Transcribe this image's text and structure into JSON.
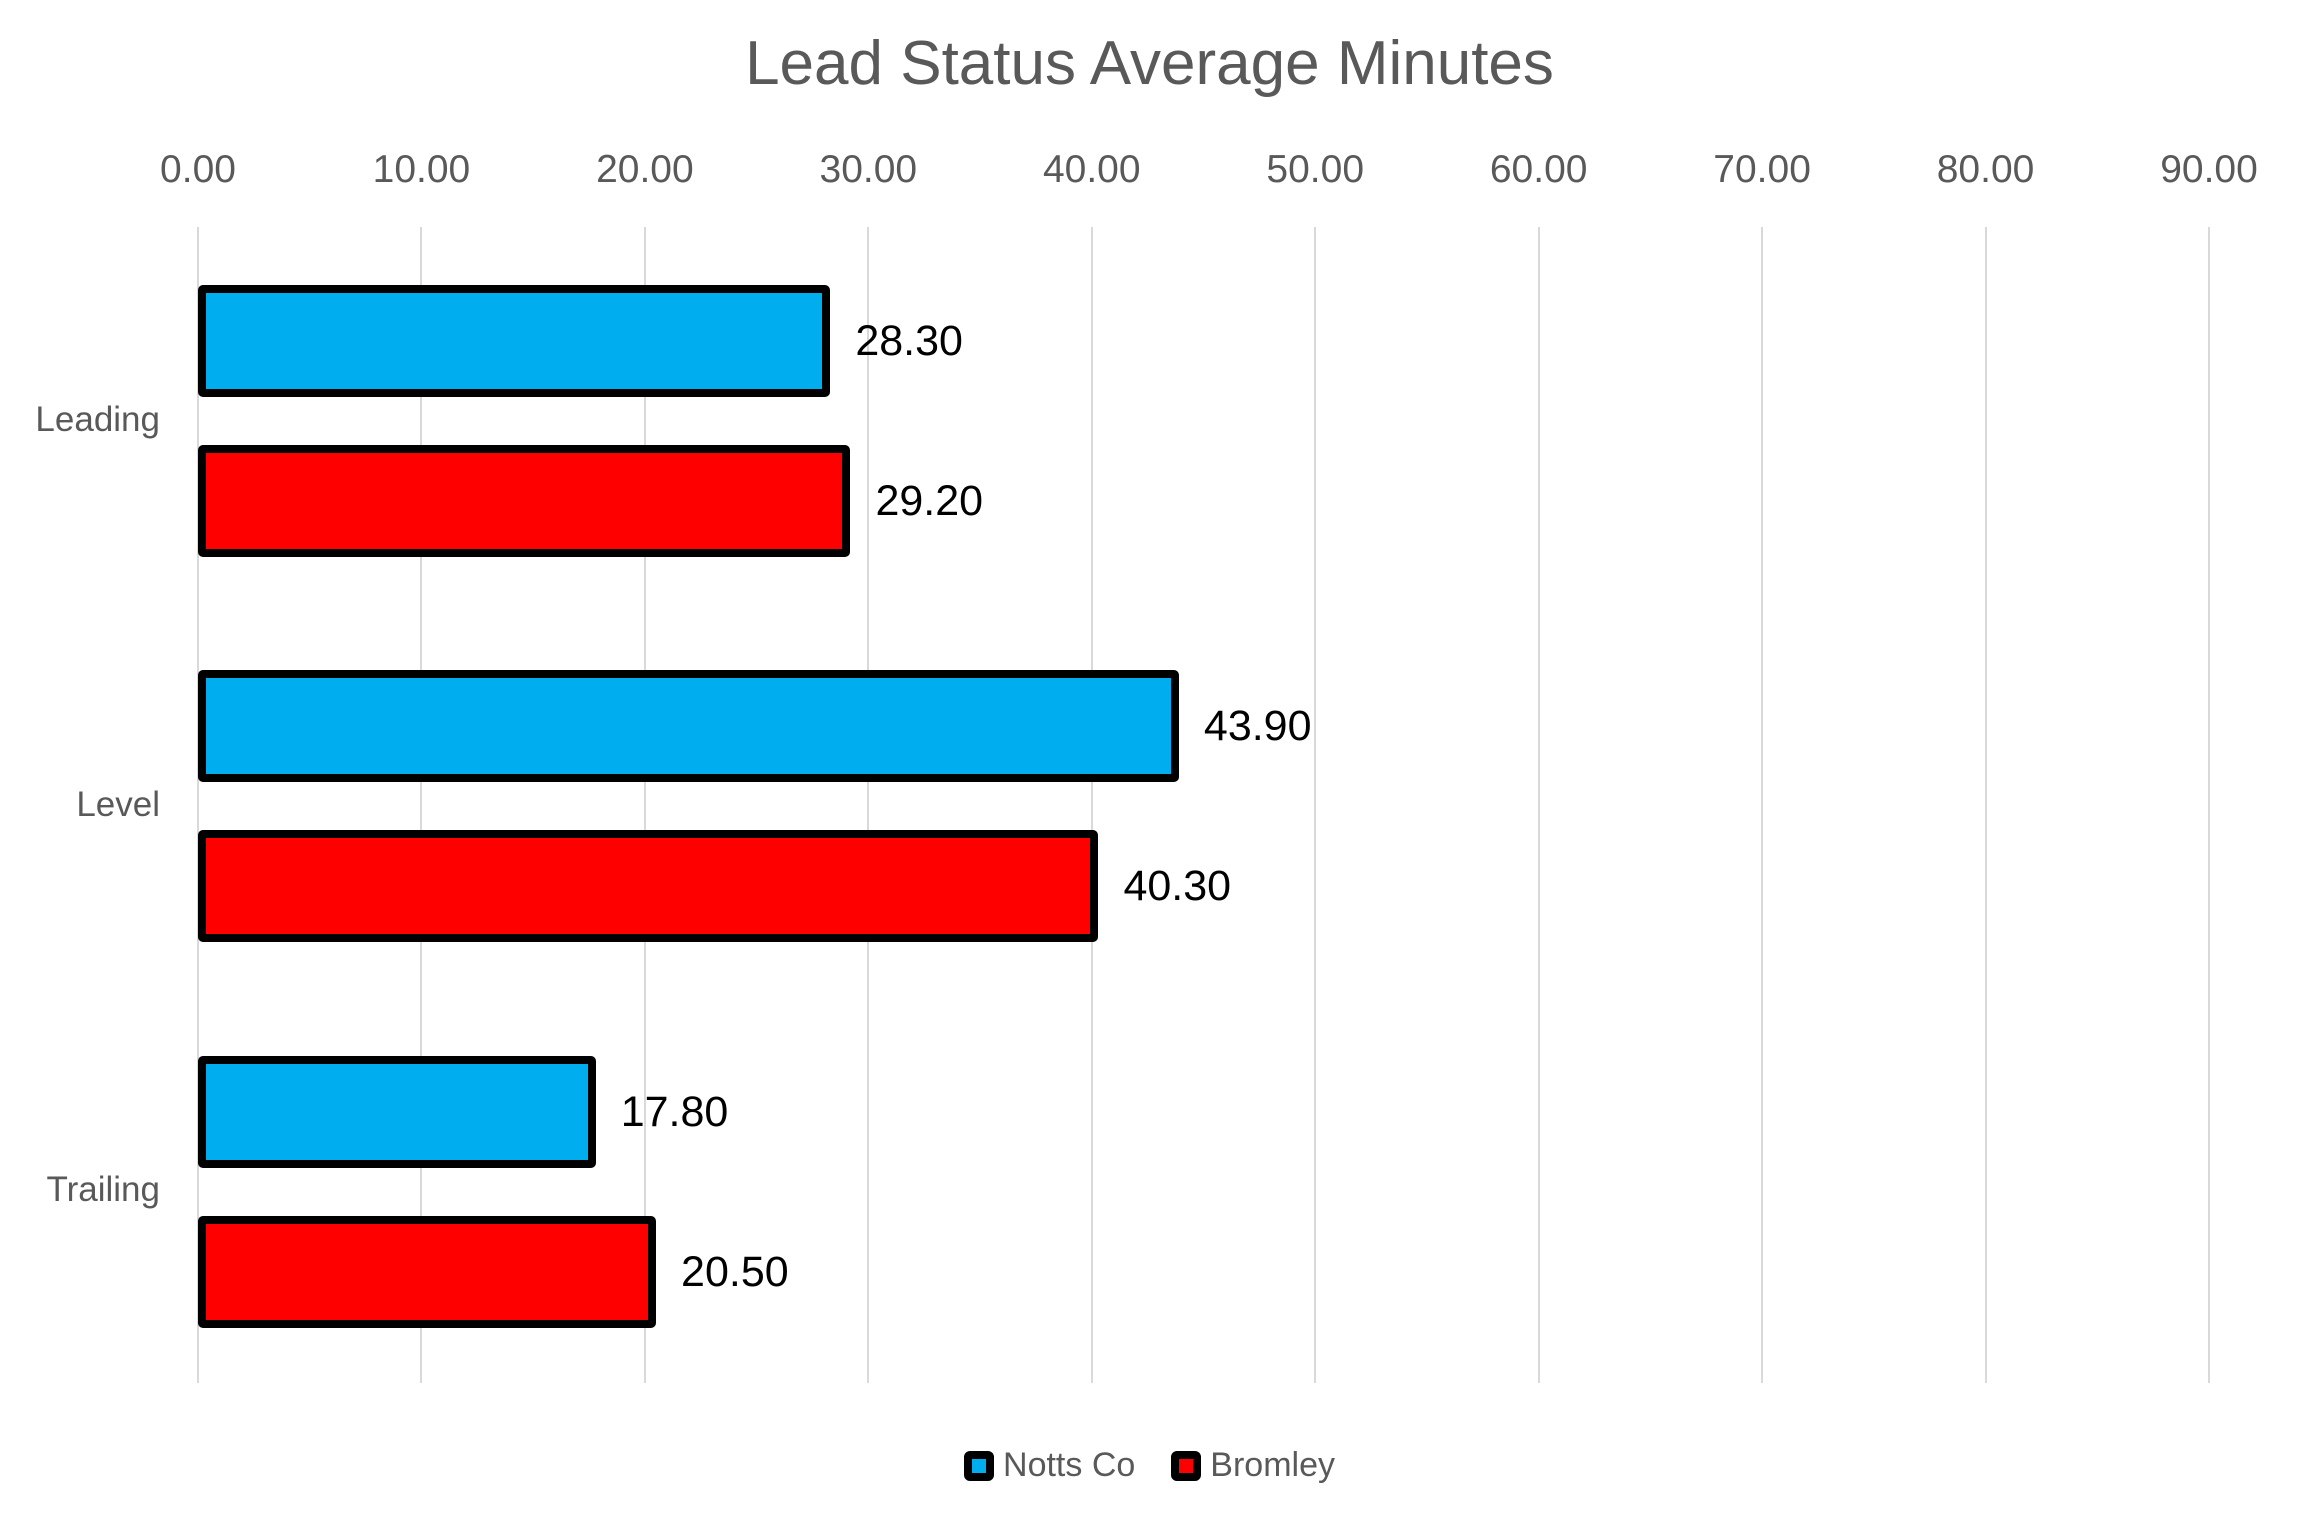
{
  "chart_data": {
    "type": "bar",
    "orientation": "horizontal",
    "title": "Lead Status Average Minutes",
    "categories": [
      "Leading",
      "Level",
      "Trailing"
    ],
    "series": [
      {
        "name": "Notts Co",
        "color": "#00AEEF",
        "values": [
          28.3,
          43.9,
          17.8
        ],
        "labels": [
          "28.30",
          "43.90",
          "17.80"
        ]
      },
      {
        "name": "Bromley",
        "color": "#FF0000",
        "values": [
          29.2,
          40.3,
          20.5
        ],
        "labels": [
          "29.20",
          "40.30",
          "20.50"
        ]
      }
    ],
    "x_axis": {
      "min": 0,
      "max": 90,
      "step": 10,
      "position": "top",
      "tick_labels": [
        "0.00",
        "10.00",
        "20.00",
        "30.00",
        "40.00",
        "50.00",
        "60.00",
        "70.00",
        "80.00",
        "90.00"
      ]
    },
    "grid": true,
    "legend_position": "bottom",
    "styles": {
      "background": "#FFFFFF",
      "gridline_color": "#D9D9D9",
      "axis_text_color": "#595959",
      "title_color": "#595959",
      "data_label_color": "#000000",
      "bar_border_color": "#000000"
    }
  }
}
